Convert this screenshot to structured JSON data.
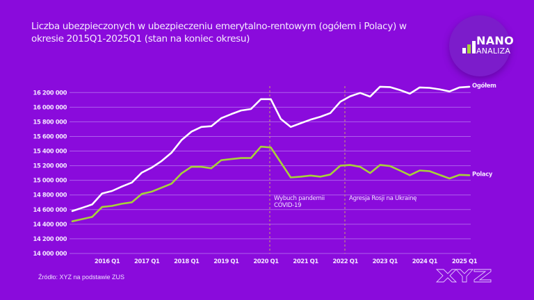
{
  "title": "Liczba ubezpieczonych w ubezpieczeniu emerytalno-rentowym (ogółem i Polacy) w okresie 2015Q1-2025Q1 (stan na koniec okresu)",
  "logo": {
    "top": "NANO",
    "bottom": "ANALIZA",
    "icon": "bar-chart-icon"
  },
  "source": "Źródło: XYZ na podstawie ZUS",
  "brand_mark": "XYZ",
  "colors": {
    "background": "#8a0bdc",
    "ogolem": "#ffffff",
    "polacy": "#a8d13a",
    "grid": "#b56ef0",
    "annotation_line": "#c9a36a"
  },
  "chart_data": {
    "type": "line",
    "title": "Liczba ubezpieczonych w ubezpieczeniu emerytalno-rentowym (ogółem i Polacy) w okresie 2015Q1-2025Q1 (stan na koniec okresu)",
    "xlabel": "",
    "ylabel": "",
    "x": [
      "2015 Q1",
      "2015 Q2",
      "2015 Q3",
      "2015 Q4",
      "2016 Q1",
      "2016 Q2",
      "2016 Q3",
      "2016 Q4",
      "2017 Q1",
      "2017 Q2",
      "2017 Q3",
      "2017 Q4",
      "2018 Q1",
      "2018 Q2",
      "2018 Q3",
      "2018 Q4",
      "2019 Q1",
      "2019 Q2",
      "2019 Q3",
      "2019 Q4",
      "2020 Q1",
      "2020 Q2",
      "2020 Q3",
      "2020 Q4",
      "2021 Q1",
      "2021 Q2",
      "2021 Q3",
      "2021 Q4",
      "2022 Q1",
      "2022 Q2",
      "2022 Q3",
      "2022 Q4",
      "2023 Q1",
      "2023 Q2",
      "2023 Q3",
      "2023 Q4",
      "2024 Q1",
      "2024 Q2",
      "2024 Q3",
      "2024 Q4",
      "2025 Q1"
    ],
    "x_tick_labels": [
      "2016 Q1",
      "2017 Q1",
      "2018 Q1",
      "2019 Q1",
      "2020 Q1",
      "2021 Q1",
      "2022 Q1",
      "2023 Q1",
      "2024 Q1",
      "2025 Q1"
    ],
    "ylim": [
      14000000,
      16200000
    ],
    "y_ticks": [
      14000000,
      14200000,
      14400000,
      14600000,
      14800000,
      15000000,
      15200000,
      15400000,
      15600000,
      15800000,
      16000000,
      16200000
    ],
    "y_tick_labels": [
      "14 000 000",
      "14 200 000",
      "14 400 000",
      "14 600 000",
      "14 800 000",
      "15 000 000",
      "15 200 000",
      "15 400 000",
      "15 600 000",
      "15 800 000",
      "16 000 000",
      "16 200 000"
    ],
    "grid": true,
    "legend": "inline-end-labels",
    "series": [
      {
        "name": "Ogółem",
        "color": "#ffffff",
        "values": [
          14580000,
          14625000,
          14670000,
          14820000,
          14855000,
          14915000,
          14970000,
          15105000,
          15175000,
          15265000,
          15380000,
          15550000,
          15665000,
          15730000,
          15740000,
          15850000,
          15905000,
          15955000,
          15975000,
          16110000,
          16110000,
          15840000,
          15730000,
          15780000,
          15830000,
          15870000,
          15920000,
          16075000,
          16150000,
          16195000,
          16145000,
          16280000,
          16275000,
          16235000,
          16185000,
          16270000,
          16265000,
          16245000,
          16215000,
          16270000,
          16280000
        ]
      },
      {
        "name": "Polacy",
        "color": "#a8d13a",
        "values": [
          14440000,
          14470000,
          14500000,
          14635000,
          14650000,
          14680000,
          14700000,
          14815000,
          14845000,
          14900000,
          14955000,
          15095000,
          15185000,
          15185000,
          15165000,
          15275000,
          15290000,
          15305000,
          15305000,
          15460000,
          15450000,
          15245000,
          15040000,
          15050000,
          15065000,
          15050000,
          15080000,
          15200000,
          15210000,
          15185000,
          15100000,
          15210000,
          15195000,
          15135000,
          15070000,
          15135000,
          15125000,
          15075000,
          15025000,
          15075000,
          15070000
        ]
      }
    ],
    "annotations": [
      {
        "x": "2020 Q1",
        "lines": [
          "Wybuch pandemii",
          "COVID-19"
        ]
      },
      {
        "x": "2022 Q1",
        "lines": [
          "Agresja Rosji na Ukrainę"
        ]
      }
    ]
  }
}
